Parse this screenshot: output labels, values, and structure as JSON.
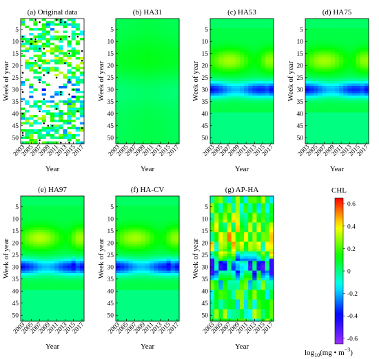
{
  "chart_data": {
    "type": "heatmap",
    "x_axis_label": "Year",
    "y_axis_label": "Week of year",
    "x_tick_labels": [
      "2003",
      "2005",
      "2007",
      "2009",
      "2011",
      "2013",
      "2015",
      "2017"
    ],
    "y_tick_labels": [
      "5",
      "10",
      "15",
      "20",
      "25",
      "30",
      "35",
      "40",
      "45",
      "50"
    ],
    "x_range": [
      2003,
      2017
    ],
    "y_range": [
      1,
      52
    ],
    "panels": [
      {
        "id": "a",
        "title": "(a) Original data",
        "mode": "original"
      },
      {
        "id": "b",
        "title": "(b) HA31",
        "mode": "ha31"
      },
      {
        "id": "c",
        "title": "(c) HA53",
        "mode": "ha53"
      },
      {
        "id": "d",
        "title": "(d) HA75",
        "mode": "ha75"
      },
      {
        "id": "e",
        "title": "(e) HA97",
        "mode": "ha97"
      },
      {
        "id": "f",
        "title": "(f) HA-CV",
        "mode": "hacv"
      },
      {
        "id": "g",
        "title": "(g) AP-HA",
        "mode": "apha"
      }
    ],
    "colorbar": {
      "title": "CHL",
      "range": [
        -0.65,
        0.65
      ],
      "ticks": [
        "0.6",
        "0.4",
        "0.2",
        "0",
        "-0.2",
        "-0.4",
        "-0.6"
      ],
      "tick_values": [
        0.6,
        0.4,
        0.2,
        0,
        -0.2,
        -0.4,
        -0.6
      ],
      "unit_prefix": "log",
      "unit_sub": "10",
      "unit_body": "(mg • m",
      "unit_sup": "−3",
      "unit_close": ")",
      "colormap": [
        "#9b30ff",
        "#0000ff",
        "#00ffff",
        "#00ff00",
        "#ffff00",
        "#ff0000"
      ]
    }
  }
}
